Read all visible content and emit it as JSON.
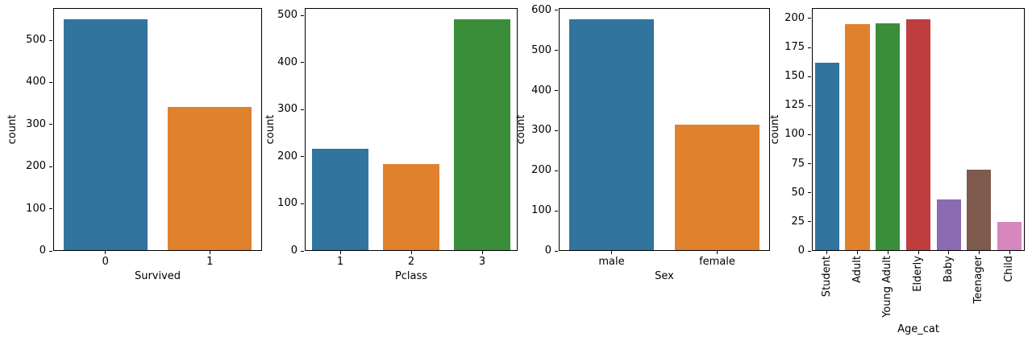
{
  "figure": {
    "background": "#ffffff",
    "axis_color": "#000000"
  },
  "chart_data": [
    {
      "type": "bar",
      "title": "",
      "xlabel": "Survived",
      "ylabel": "count",
      "categories": [
        "0",
        "1"
      ],
      "values": [
        549,
        342
      ],
      "bar_colors": [
        "#31749e",
        "#e0812e"
      ],
      "ylim": [
        0,
        576.45
      ],
      "yticks": [
        0,
        100,
        200,
        300,
        400,
        500
      ],
      "x_tick_rotation": 0,
      "grid": false,
      "legend": null
    },
    {
      "type": "bar",
      "title": "",
      "xlabel": "Pclass",
      "ylabel": "count",
      "categories": [
        "1",
        "2",
        "3"
      ],
      "values": [
        216,
        184,
        491
      ],
      "bar_colors": [
        "#31749e",
        "#e0812e",
        "#3a8e3a"
      ],
      "ylim": [
        0,
        515.55
      ],
      "yticks": [
        0,
        100,
        200,
        300,
        400,
        500
      ],
      "x_tick_rotation": 0,
      "grid": false,
      "legend": null
    },
    {
      "type": "bar",
      "title": "",
      "xlabel": "Sex",
      "ylabel": "count",
      "categories": [
        "male",
        "female"
      ],
      "values": [
        577,
        314
      ],
      "bar_colors": [
        "#31749e",
        "#e0812e"
      ],
      "ylim": [
        0,
        605.85
      ],
      "yticks": [
        0,
        100,
        200,
        300,
        400,
        500,
        600
      ],
      "x_tick_rotation": 0,
      "grid": false,
      "legend": null
    },
    {
      "type": "bar",
      "title": "",
      "xlabel": "Age_cat",
      "ylabel": "count",
      "categories": [
        "Student",
        "Adult",
        "Young Adult",
        "Elderly",
        "Baby",
        "Teenager",
        "Child"
      ],
      "values": [
        162,
        195,
        196,
        199,
        44,
        70,
        25
      ],
      "bar_colors": [
        "#31749e",
        "#e0812e",
        "#3a8e3a",
        "#bf3d3f",
        "#8a6ab0",
        "#7f5a4f",
        "#d687bd"
      ],
      "ylim": [
        0,
        208.95
      ],
      "yticks": [
        0,
        25,
        50,
        75,
        100,
        125,
        150,
        175,
        200
      ],
      "x_tick_rotation": 90,
      "grid": false,
      "legend": null
    }
  ]
}
